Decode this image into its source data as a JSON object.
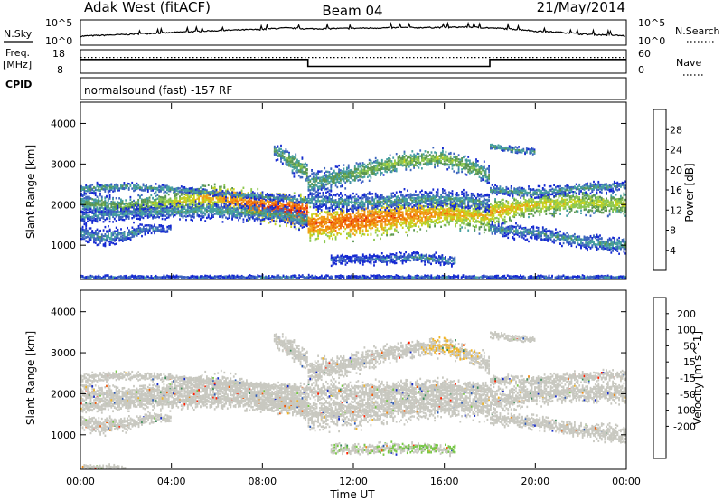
{
  "header": {
    "station": "Adak West (fitACF)",
    "beam": "Beam 04",
    "date": "21/May/2014"
  },
  "colors": {
    "power": [
      "#1428d2",
      "#3c64be",
      "#46a0a0",
      "#5a9650",
      "#8cc850",
      "#c8d21e",
      "#f0a014",
      "#f06e0a",
      "#e6280a",
      "#ff0000"
    ],
    "velocity": [
      "#1428c8",
      "#2d5ab4",
      "#3c8c5a",
      "#78c846",
      "#c8c8c0",
      "#c8c8c0",
      "#f0b428",
      "#f08c14",
      "#f05a0a",
      "#ff1e00"
    ],
    "noise_line": "#000000"
  },
  "panels": {
    "nsky": {
      "left_label": "N.Sky",
      "right_label": "N.Search",
      "tick_top": "10^5",
      "tick_bottom": "10^0"
    },
    "freq": {
      "left_label_top": "Freq.",
      "left_label_bottom": "[MHz]",
      "right_label": "Nave",
      "left_ticks": [
        "18",
        "8"
      ],
      "right_ticks": [
        "60",
        "0"
      ],
      "cpid_label": "CPID",
      "cpid_text": "normalsound (fast) -157 RF"
    }
  },
  "chart_data": [
    {
      "type": "line",
      "title": "N.Sky / N.Search",
      "x_unit": "hours UT",
      "xlim": [
        0,
        24
      ],
      "y_scale": "log",
      "ylim": [
        1,
        100000
      ],
      "series": [
        {
          "name": "N.Sky",
          "x": [
            0,
            2,
            4,
            6,
            8,
            9,
            10,
            12,
            14,
            16,
            17,
            18,
            20,
            22,
            24
          ],
          "values": [
            50,
            120,
            300,
            800,
            1500,
            3000,
            2000,
            2500,
            3500,
            4000,
            5000,
            3000,
            600,
            150,
            60
          ]
        }
      ]
    },
    {
      "type": "line",
      "title": "Freq. [MHz] / Nave",
      "x_unit": "hours UT",
      "xlim": [
        0,
        24
      ],
      "ylim": [
        8,
        18
      ],
      "series": [
        {
          "name": "Freq.",
          "x": [
            0,
            10,
            10,
            18,
            18,
            24
          ],
          "values": [
            14,
            14,
            10.5,
            10.5,
            14,
            14
          ]
        },
        {
          "name": "Nave",
          "x": [
            0,
            24
          ],
          "values": [
            15,
            15
          ]
        }
      ]
    },
    {
      "type": "heatmap",
      "title": "Power [dB]",
      "xlabel": "",
      "ylabel": "Slant Range [km]",
      "x_unit": "hours UT",
      "xlim": [
        0,
        24
      ],
      "ylim": [
        180,
        4500
      ],
      "y_ticks": [
        "1000",
        "2000",
        "3000",
        "4000"
      ],
      "colorbar": {
        "label": "Power [dB]",
        "ticks": [
          "4",
          "8",
          "12",
          "16",
          "20",
          "24",
          "28"
        ],
        "range": [
          0,
          30
        ]
      },
      "bands": [
        {
          "x": [
            0,
            2,
            4,
            6,
            8,
            10
          ],
          "center": [
            2050,
            1950,
            2050,
            2200,
            1950,
            1800
          ],
          "width": [
            300,
            250,
            300,
            350,
            400,
            450
          ],
          "power": [
            10,
            12,
            16,
            20,
            24,
            26
          ]
        },
        {
          "x": [
            0,
            2,
            4,
            6,
            8,
            10
          ],
          "center": [
            2380,
            2450,
            2380,
            2280,
            2200,
            2100
          ],
          "width": [
            150,
            120,
            100,
            100,
            100,
            120
          ],
          "power": [
            9,
            10,
            9,
            8,
            8,
            9
          ]
        },
        {
          "x": [
            0,
            3,
            6,
            9,
            10
          ],
          "center": [
            1700,
            1800,
            1850,
            1750,
            1600
          ],
          "width": [
            200,
            200,
            250,
            250,
            250
          ],
          "power": [
            7,
            8,
            9,
            9,
            9
          ]
        },
        {
          "x": [
            0,
            1,
            2,
            3,
            4
          ],
          "center": [
            1300,
            1200,
            1250,
            1400,
            1400
          ],
          "width": [
            250,
            250,
            200,
            150,
            100
          ],
          "power": [
            7,
            8,
            8,
            7,
            6
          ]
        },
        {
          "x": [
            8.5,
            9.3,
            10
          ],
          "center": [
            3350,
            3050,
            2800
          ],
          "width": [
            200,
            300,
            300
          ],
          "power": [
            10,
            12,
            12
          ]
        },
        {
          "x": [
            10,
            12,
            14,
            16,
            18
          ],
          "center": [
            1500,
            1600,
            1700,
            1800,
            1700
          ],
          "width": [
            450,
            450,
            450,
            400,
            400
          ],
          "power": [
            22,
            24,
            22,
            20,
            18
          ]
        },
        {
          "x": [
            10,
            12,
            14,
            16,
            17.5,
            18
          ],
          "center": [
            2500,
            2750,
            3050,
            3150,
            2850,
            2700
          ],
          "width": [
            350,
            300,
            250,
            250,
            250,
            300
          ],
          "power": [
            10,
            12,
            14,
            14,
            12,
            10
          ]
        },
        {
          "x": [
            10,
            12,
            14,
            16,
            18
          ],
          "center": [
            2100,
            2050,
            2100,
            2150,
            2050
          ],
          "width": [
            250,
            250,
            250,
            250,
            250
          ],
          "power": [
            8,
            9,
            9,
            9,
            8
          ]
        },
        {
          "x": [
            11,
            13,
            15,
            16.5
          ],
          "center": [
            650,
            650,
            700,
            600
          ],
          "width": [
            150,
            150,
            150,
            150
          ],
          "power": [
            5,
            6,
            8,
            8
          ]
        },
        {
          "x": [
            18,
            20,
            22,
            24
          ],
          "center": [
            1800,
            2000,
            2050,
            2000
          ],
          "width": [
            350,
            300,
            300,
            300
          ],
          "power": [
            20,
            18,
            16,
            16
          ]
        },
        {
          "x": [
            18,
            20,
            22,
            24
          ],
          "center": [
            2350,
            2300,
            2400,
            2450
          ],
          "width": [
            150,
            150,
            150,
            150
          ],
          "power": [
            9,
            9,
            9,
            8
          ]
        },
        {
          "x": [
            18,
            20,
            22,
            24
          ],
          "center": [
            1400,
            1300,
            1100,
            1000
          ],
          "width": [
            200,
            200,
            200,
            250
          ],
          "power": [
            8,
            8,
            9,
            9
          ]
        },
        {
          "x": [
            18,
            19,
            20
          ],
          "center": [
            3450,
            3350,
            3300
          ],
          "width": [
            100,
            100,
            100
          ],
          "power": [
            10,
            10,
            9
          ]
        },
        {
          "x": [
            0,
            4,
            8,
            12,
            16,
            20,
            24
          ],
          "center": [
            210,
            210,
            210,
            210,
            210,
            210,
            210
          ],
          "width": [
            60,
            60,
            60,
            60,
            60,
            60,
            60
          ],
          "power": [
            6,
            5,
            6,
            5,
            6,
            5,
            6
          ]
        }
      ]
    },
    {
      "type": "heatmap",
      "title": "Velocity [m s^-1]",
      "xlabel": "Time UT",
      "ylabel": "Slant Range [km]",
      "x_unit": "hours UT",
      "xlim": [
        0,
        24
      ],
      "ylim": [
        180,
        4500
      ],
      "y_ticks": [
        "1000",
        "2000",
        "3000",
        "4000"
      ],
      "x_ticks": [
        "00:00",
        "04:00",
        "08:00",
        "12:00",
        "16:00",
        "20:00",
        "00:00"
      ],
      "colorbar": {
        "label": "Velocity [m s^-1]",
        "ticks": [
          "200",
          "100",
          "50",
          "15",
          "-15",
          "-50",
          "-100",
          "-200"
        ],
        "range": [
          -250,
          250
        ]
      },
      "bands": [
        {
          "x": [
            0,
            2,
            4,
            6,
            8,
            10
          ],
          "center": [
            2050,
            1950,
            2050,
            2200,
            1950,
            1800
          ],
          "width": [
            300,
            250,
            300,
            350,
            400,
            450
          ],
          "velocity": [
            0,
            0,
            0,
            0,
            0,
            0
          ]
        },
        {
          "x": [
            0,
            2,
            4,
            6,
            8,
            10
          ],
          "center": [
            2380,
            2450,
            2380,
            2280,
            2200,
            2100
          ],
          "width": [
            150,
            120,
            100,
            100,
            100,
            120
          ],
          "velocity": [
            0,
            0,
            0,
            0,
            0,
            0
          ]
        },
        {
          "x": [
            0,
            3,
            6,
            9,
            10
          ],
          "center": [
            1700,
            1800,
            1850,
            1750,
            1600
          ],
          "width": [
            200,
            200,
            250,
            250,
            250
          ],
          "velocity": [
            0,
            0,
            0,
            0,
            0
          ]
        },
        {
          "x": [
            0,
            1,
            2,
            3,
            4
          ],
          "center": [
            1300,
            1200,
            1250,
            1400,
            1400
          ],
          "width": [
            250,
            250,
            200,
            150,
            100
          ],
          "velocity": [
            0,
            0,
            0,
            0,
            0
          ]
        },
        {
          "x": [
            8.5,
            9.3,
            10
          ],
          "center": [
            3350,
            3050,
            2800
          ],
          "width": [
            200,
            300,
            300
          ],
          "velocity": [
            0,
            0,
            0
          ]
        },
        {
          "x": [
            10,
            12,
            14,
            16,
            18
          ],
          "center": [
            1500,
            1600,
            1700,
            1800,
            1700
          ],
          "width": [
            450,
            450,
            450,
            400,
            400
          ],
          "velocity": [
            0,
            0,
            0,
            0,
            0
          ]
        },
        {
          "x": [
            10,
            12,
            14,
            16,
            17.5,
            18
          ],
          "center": [
            2500,
            2750,
            3050,
            3150,
            2850,
            2700
          ],
          "width": [
            350,
            300,
            250,
            250,
            250,
            300
          ],
          "velocity": [
            0,
            0,
            25,
            50,
            40,
            0
          ]
        },
        {
          "x": [
            10,
            12,
            14,
            16,
            18
          ],
          "center": [
            2100,
            2050,
            2100,
            2150,
            2050
          ],
          "width": [
            250,
            250,
            250,
            250,
            250
          ],
          "velocity": [
            -30,
            -20,
            -30,
            -20,
            0
          ]
        },
        {
          "x": [
            11,
            13,
            15,
            16.5
          ],
          "center": [
            650,
            650,
            700,
            600
          ],
          "width": [
            150,
            150,
            150,
            150
          ],
          "velocity": [
            -40,
            -40,
            -50,
            -50
          ]
        },
        {
          "x": [
            18,
            20,
            22,
            24
          ],
          "center": [
            1800,
            2000,
            2050,
            2000
          ],
          "width": [
            350,
            300,
            300,
            300
          ],
          "velocity": [
            0,
            0,
            0,
            0
          ]
        },
        {
          "x": [
            18,
            20,
            22,
            24
          ],
          "center": [
            2350,
            2300,
            2400,
            2450
          ],
          "width": [
            150,
            150,
            150,
            150
          ],
          "velocity": [
            0,
            0,
            0,
            0
          ]
        },
        {
          "x": [
            18,
            20,
            22,
            24
          ],
          "center": [
            1400,
            1300,
            1100,
            1000
          ],
          "width": [
            200,
            200,
            200,
            250
          ],
          "velocity": [
            0,
            0,
            0,
            0
          ]
        },
        {
          "x": [
            18,
            19,
            20
          ],
          "center": [
            3450,
            3350,
            3300
          ],
          "width": [
            100,
            100,
            100
          ],
          "velocity": [
            0,
            0,
            0
          ]
        },
        {
          "x": [
            0,
            1,
            2
          ],
          "center": [
            200,
            200,
            200
          ],
          "width": [
            80,
            80,
            80
          ],
          "velocity": [
            -40,
            -40,
            -30
          ]
        }
      ]
    }
  ]
}
